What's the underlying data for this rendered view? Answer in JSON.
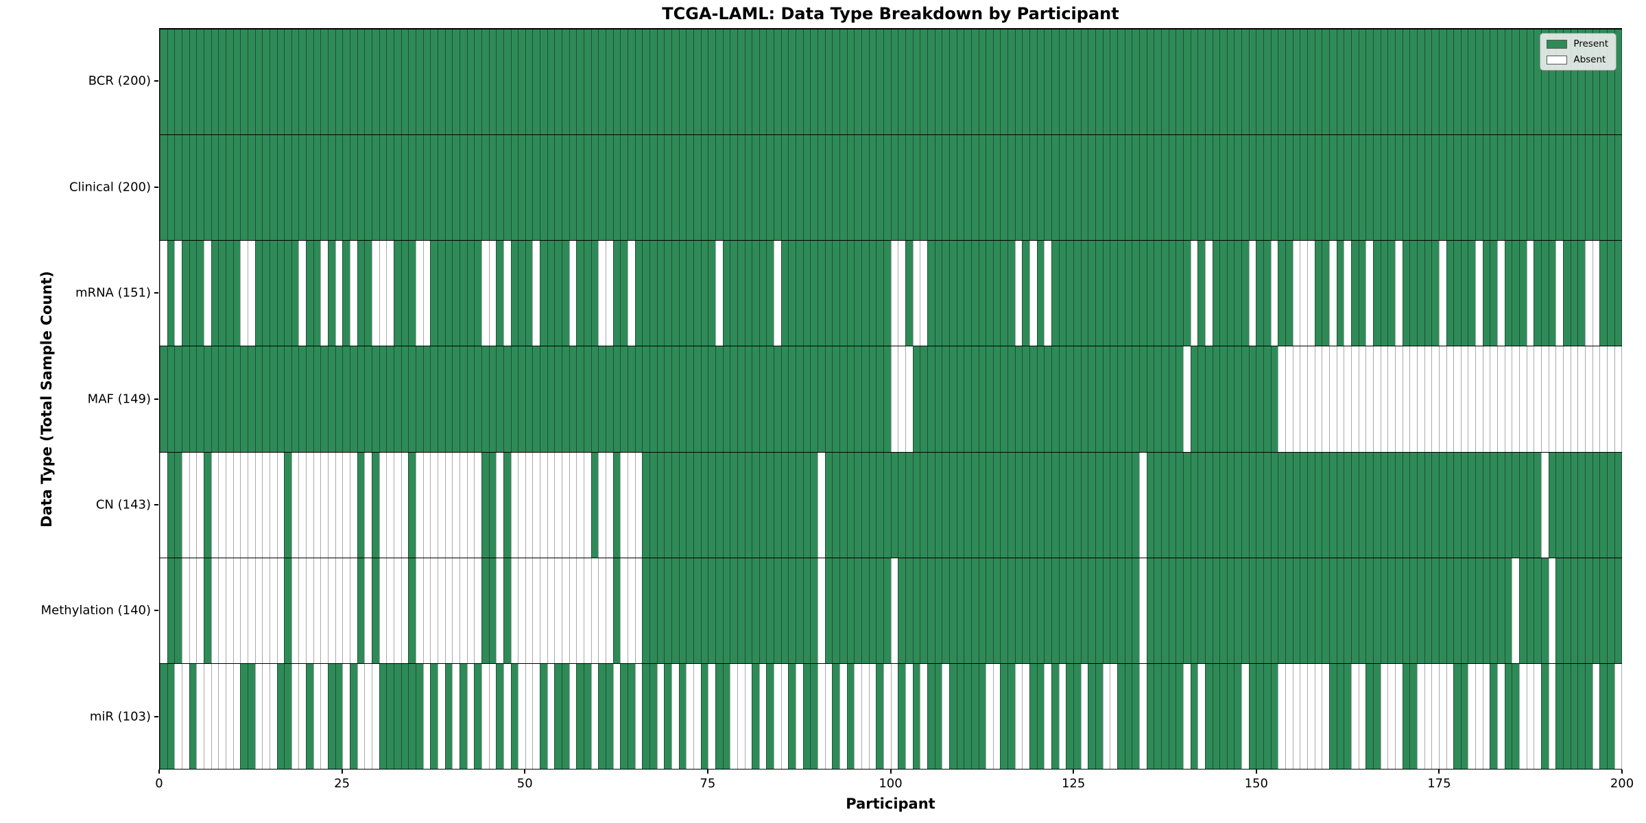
{
  "figure": {
    "title": "TCGA-LAML: Data Type Breakdown by Participant",
    "xlabel": "Participant",
    "ylabel": "Data Type (Total Sample Count)"
  },
  "legend": {
    "present_label": "Present",
    "absent_label": "Absent"
  },
  "colors": {
    "present": "#2e8b57",
    "absent": "#ffffff",
    "present_edge": "#1e4f37",
    "absent_edge": "#a9a9a9",
    "axis": "#000000",
    "legend_bg": "#f0f0f0"
  },
  "chart_data": {
    "type": "heatmap",
    "title": "TCGA-LAML: Data Type Breakdown by Participant",
    "xlabel": "Participant",
    "ylabel": "Data Type (Total Sample Count)",
    "x_range": [
      0,
      200
    ],
    "x_ticks": [
      0,
      25,
      50,
      75,
      100,
      125,
      150,
      175,
      200
    ],
    "n_participants": 200,
    "legend_position": "upper right",
    "legend_entries": [
      "Present",
      "Absent"
    ],
    "value_encoding": {
      "present": 1,
      "absent": 0
    },
    "rows": [
      {
        "label": "BCR (200)",
        "name": "BCR",
        "total": 200,
        "absent": []
      },
      {
        "label": "Clinical (200)",
        "name": "Clinical",
        "total": 200,
        "absent": []
      },
      {
        "label": "mRNA (151)",
        "name": "mRNA",
        "total": 151,
        "absent": [
          0,
          2,
          6,
          11,
          12,
          19,
          22,
          24,
          26,
          29,
          30,
          31,
          35,
          36,
          44,
          45,
          47,
          51,
          56,
          60,
          61,
          64,
          76,
          84,
          100,
          101,
          103,
          104,
          117,
          119,
          121,
          141,
          143,
          149,
          152,
          155,
          156,
          157,
          160,
          162,
          165,
          169,
          175,
          180,
          183,
          187,
          191,
          195,
          196
        ]
      },
      {
        "label": "MAF (149)",
        "name": "MAF",
        "total": 149,
        "absent": [
          100,
          101,
          102,
          140,
          153,
          154,
          155,
          156,
          157,
          158,
          159,
          160,
          161,
          162,
          163,
          164,
          165,
          166,
          167,
          168,
          169,
          170,
          171,
          172,
          173,
          174,
          175,
          176,
          177,
          178,
          179,
          180,
          181,
          182,
          183,
          184,
          185,
          186,
          187,
          188,
          189,
          190,
          191,
          192,
          193,
          194,
          195,
          196,
          197,
          198,
          199
        ]
      },
      {
        "label": "CN (143)",
        "name": "CN",
        "total": 143,
        "absent": [
          0,
          3,
          4,
          5,
          7,
          8,
          9,
          10,
          11,
          12,
          13,
          14,
          15,
          16,
          18,
          19,
          20,
          21,
          22,
          23,
          24,
          25,
          26,
          28,
          30,
          31,
          32,
          33,
          35,
          36,
          37,
          38,
          39,
          40,
          41,
          42,
          43,
          46,
          48,
          49,
          50,
          51,
          52,
          53,
          54,
          55,
          56,
          57,
          58,
          60,
          61,
          63,
          64,
          65,
          90,
          134,
          189
        ]
      },
      {
        "label": "Methylation (140)",
        "name": "Methylation",
        "total": 140,
        "absent": [
          0,
          3,
          4,
          5,
          7,
          8,
          9,
          10,
          11,
          12,
          13,
          14,
          15,
          16,
          18,
          19,
          20,
          21,
          22,
          23,
          24,
          25,
          26,
          28,
          30,
          31,
          32,
          33,
          35,
          36,
          37,
          38,
          39,
          40,
          41,
          42,
          43,
          46,
          48,
          49,
          50,
          51,
          52,
          53,
          54,
          55,
          56,
          57,
          58,
          59,
          60,
          61,
          63,
          64,
          65,
          90,
          100,
          134,
          185,
          190
        ]
      },
      {
        "label": "miR (103)",
        "name": "miR",
        "total": 103,
        "absent": [
          2,
          3,
          5,
          6,
          7,
          8,
          9,
          10,
          13,
          14,
          15,
          18,
          19,
          21,
          22,
          25,
          27,
          28,
          29,
          36,
          38,
          40,
          42,
          44,
          45,
          47,
          49,
          50,
          51,
          53,
          56,
          59,
          62,
          65,
          68,
          70,
          72,
          73,
          75,
          78,
          79,
          80,
          82,
          84,
          85,
          87,
          90,
          91,
          93,
          95,
          96,
          97,
          99,
          100,
          102,
          104,
          107,
          113,
          114,
          117,
          118,
          121,
          123,
          126,
          129,
          130,
          134,
          140,
          142,
          148,
          153,
          154,
          155,
          156,
          157,
          158,
          159,
          163,
          164,
          167,
          168,
          169,
          172,
          173,
          174,
          175,
          176,
          179,
          180,
          181,
          183,
          186,
          187,
          188,
          190,
          196,
          199
        ]
      }
    ]
  }
}
